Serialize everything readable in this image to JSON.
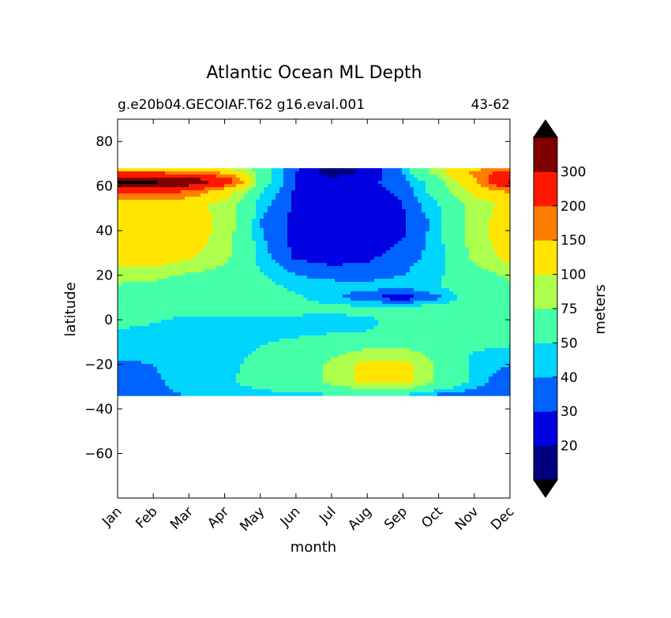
{
  "chart_data": {
    "type": "heatmap",
    "title": "Atlantic Ocean ML Depth",
    "subtitle_left": "g.e20b04.GECOIAF.T62 g16.eval.001",
    "subtitle_right": "43-62",
    "xlabel": "month",
    "ylabel": "latitude",
    "x_ticks": [
      "Jan",
      "Feb",
      "Mar",
      "Apr",
      "May",
      "Jun",
      "Jul",
      "Aug",
      "Sep",
      "Oct",
      "Nov",
      "Dec"
    ],
    "y_ticks": [
      80,
      60,
      40,
      20,
      0,
      -20,
      -40,
      -60
    ],
    "ylim": [
      -80,
      90
    ],
    "data_lat_range": [
      -34,
      68
    ],
    "colorbar": {
      "label": "meters",
      "levels": [
        10,
        20,
        30,
        40,
        50,
        75,
        100,
        150,
        200,
        300,
        400
      ],
      "tick_labels": [
        "20",
        "30",
        "40",
        "50",
        "75",
        "100",
        "150",
        "200",
        "300"
      ],
      "colors": [
        "#00007f",
        "#0000e0",
        "#0062ff",
        "#00d5ff",
        "#46ffa9",
        "#acff4a",
        "#ffe500",
        "#ff7d00",
        "#ff1800",
        "#7f0000"
      ],
      "under_color": "#000000",
      "over_color": "#000000",
      "extend": "both"
    },
    "latitudes": [
      -34,
      -28,
      -20,
      -12,
      -5,
      0,
      5,
      10,
      15,
      20,
      28,
      36,
      44,
      52,
      58,
      62,
      66,
      68
    ],
    "values": [
      [
        32,
        38,
        40,
        45,
        46,
        46,
        47,
        47,
        45,
        36,
        34,
        30
      ],
      [
        33,
        38,
        45,
        48,
        55,
        62,
        80,
        110,
        110,
        70,
        45,
        32
      ],
      [
        38,
        40,
        45,
        48,
        52,
        60,
        80,
        110,
        110,
        70,
        45,
        40
      ],
      [
        45,
        45,
        45,
        48,
        50,
        55,
        60,
        70,
        70,
        62,
        52,
        50
      ],
      [
        48,
        46,
        44,
        45,
        46,
        46,
        48,
        50,
        52,
        54,
        55,
        52
      ],
      [
        58,
        52,
        46,
        47,
        46,
        45,
        45,
        48,
        54,
        58,
        58,
        58
      ],
      [
        62,
        60,
        58,
        57,
        56,
        57,
        56,
        54,
        56,
        58,
        60,
        62
      ],
      [
        66,
        64,
        62,
        60,
        58,
        52,
        42,
        32,
        22,
        38,
        60,
        64
      ],
      [
        72,
        70,
        66,
        60,
        55,
        47,
        46,
        45,
        45,
        50,
        60,
        70
      ],
      [
        85,
        80,
        72,
        65,
        52,
        40,
        35,
        35,
        40,
        48,
        62,
        80
      ],
      [
        120,
        120,
        105,
        80,
        45,
        28,
        26,
        28,
        35,
        45,
        80,
        110
      ],
      [
        125,
        125,
        120,
        85,
        42,
        26,
        22,
        24,
        30,
        45,
        85,
        120
      ],
      [
        120,
        120,
        120,
        90,
        40,
        26,
        22,
        24,
        28,
        45,
        85,
        120
      ],
      [
        110,
        110,
        110,
        90,
        45,
        28,
        24,
        26,
        30,
        50,
        85,
        110
      ],
      [
        220,
        240,
        200,
        120,
        52,
        28,
        24,
        26,
        32,
        60,
        110,
        160
      ],
      [
        420,
        420,
        380,
        260,
        60,
        30,
        25,
        27,
        36,
        60,
        140,
        320
      ],
      [
        200,
        200,
        180,
        140,
        60,
        30,
        15,
        22,
        40,
        90,
        160,
        240
      ],
      [
        110,
        110,
        110,
        100,
        60,
        32,
        15,
        22,
        40,
        90,
        130,
        180
      ]
    ]
  }
}
